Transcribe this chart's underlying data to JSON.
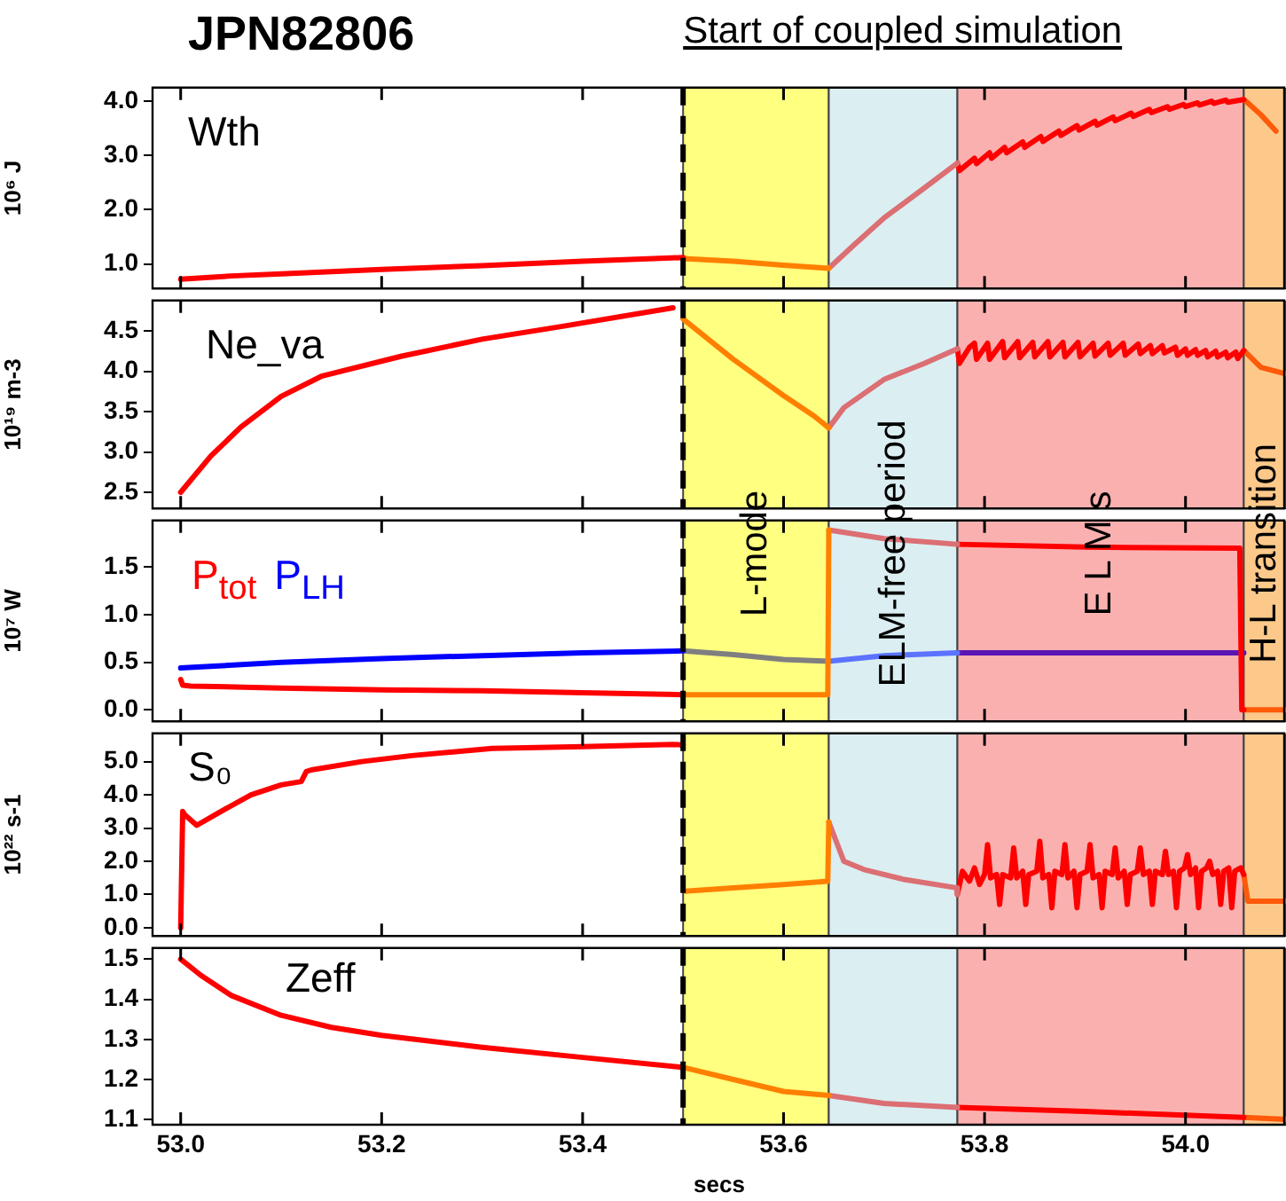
{
  "chart_data": [
    {
      "type": "line",
      "title": "JPN82806",
      "ylabel": "10⁶ J",
      "annotations": [
        "Wth"
      ],
      "tick_labels": "y",
      "marker": "none",
      "xlim": [
        52.972,
        54.1
      ],
      "xticks": [
        {
          "value": 53,
          "label": null
        },
        {
          "value": 53.2,
          "label": null
        },
        {
          "value": 53.4,
          "label": null
        },
        {
          "value": 53.6,
          "label": null
        },
        {
          "value": 53.8,
          "label": null
        },
        {
          "value": 54,
          "label": null
        }
      ],
      "ylim": [
        0.55,
        4.25
      ],
      "yticks": [
        {
          "value": 1,
          "label": "1.0"
        },
        {
          "value": 2,
          "label": "2.0"
        },
        {
          "value": 3,
          "label": "3.0"
        },
        {
          "value": 4,
          "label": "4.0"
        }
      ],
      "series": [
        {
          "color": "#ff0000",
          "x": [
            53.0,
            53.05,
            53.1,
            53.2,
            53.3,
            53.4,
            53.5
          ],
          "values": [
            0.72,
            0.78,
            0.82,
            0.9,
            0.97,
            1.05,
            1.12
          ]
        },
        {
          "color": "#ff8000",
          "x": [
            53.5,
            53.55,
            53.6,
            53.645
          ],
          "values": [
            1.1,
            1.05,
            0.98,
            0.92
          ]
        },
        {
          "color": "#db6f73",
          "x": [
            53.645,
            53.67,
            53.7,
            53.74,
            53.773
          ],
          "values": [
            0.92,
            1.35,
            1.85,
            2.4,
            2.86
          ]
        },
        {
          "color": "#ff0000",
          "x": [
            53.773,
            53.775,
            53.79,
            53.792,
            53.805,
            53.807,
            53.82,
            53.822,
            53.838,
            53.84,
            53.856,
            53.858,
            53.874,
            53.876,
            53.892,
            53.894,
            53.91,
            53.912,
            53.928,
            53.93,
            53.946,
            53.948,
            53.964,
            53.966,
            53.982,
            53.984,
            53.998,
            54.0,
            54.012,
            54.014,
            54.026,
            54.028,
            54.04,
            54.042,
            54.058
          ],
          "values": [
            2.86,
            2.72,
            2.95,
            2.85,
            3.05,
            2.95,
            3.15,
            3.05,
            3.25,
            3.15,
            3.35,
            3.26,
            3.45,
            3.37,
            3.55,
            3.47,
            3.63,
            3.56,
            3.71,
            3.64,
            3.78,
            3.72,
            3.85,
            3.79,
            3.9,
            3.85,
            3.94,
            3.9,
            3.97,
            3.93,
            4.0,
            3.96,
            4.02,
            3.98,
            4.03
          ]
        },
        {
          "color": "#fd5a0a",
          "x": [
            54.058,
            54.06,
            54.075,
            54.09
          ],
          "values": [
            4.03,
            4.0,
            3.75,
            3.45
          ]
        }
      ],
      "bands": [
        {
          "axis": "x",
          "from": 53.5,
          "to": 53.645,
          "color": "#ffff80"
        },
        {
          "axis": "x",
          "from": 53.645,
          "to": 53.773,
          "color": "#dbeef2"
        },
        {
          "axis": "x",
          "from": 53.773,
          "to": 54.058,
          "color": "#fbb0b0"
        },
        {
          "axis": "x",
          "from": 54.058,
          "to": 54.1,
          "color": "#fdc98a"
        }
      ],
      "ref_lines": [
        {
          "axis": "x",
          "value": 53.5,
          "label": "Start of coupled simulation",
          "color": "#000000",
          "line_style": "dashed"
        }
      ]
    },
    {
      "type": "line",
      "ylabel": "10¹⁹ m-3",
      "annotations": [
        "Ne_va"
      ],
      "tick_labels": "y",
      "marker": "none",
      "xlim": [
        52.972,
        54.1
      ],
      "xticks": [
        {
          "value": 53,
          "label": null
        },
        {
          "value": 53.2,
          "label": null
        },
        {
          "value": 53.4,
          "label": null
        },
        {
          "value": 53.6,
          "label": null
        },
        {
          "value": 53.8,
          "label": null
        },
        {
          "value": 54,
          "label": null
        }
      ],
      "ylim": [
        2.3,
        4.88
      ],
      "yticks": [
        2.5,
        {
          "value": 3,
          "label": "3.0"
        },
        3.5,
        {
          "value": 4,
          "label": "4.0"
        },
        4.5
      ],
      "series": [
        {
          "color": "#ff0000",
          "x": [
            53.0,
            53.03,
            53.06,
            53.1,
            53.14,
            53.22,
            53.3,
            53.38,
            53.49
          ],
          "values": [
            2.5,
            2.95,
            3.31,
            3.69,
            3.94,
            4.19,
            4.4,
            4.56,
            4.79
          ]
        },
        {
          "color": "#ff8000",
          "x": [
            53.5,
            53.55,
            53.6,
            53.63,
            53.645
          ],
          "values": [
            4.65,
            4.15,
            3.7,
            3.45,
            3.3
          ]
        },
        {
          "color": "#db6f73",
          "x": [
            53.645,
            53.66,
            53.7,
            53.74,
            53.773
          ],
          "values": [
            3.3,
            3.55,
            3.9,
            4.1,
            4.28
          ]
        },
        {
          "color": "#ff0000",
          "x": [
            53.773,
            53.775,
            53.785,
            53.79,
            53.792,
            53.803,
            53.805,
            53.818,
            53.82,
            53.833,
            53.835,
            53.848,
            53.85,
            53.863,
            53.865,
            53.878,
            53.88,
            53.893,
            53.895,
            53.908,
            53.91,
            53.923,
            53.925,
            53.938,
            53.94,
            53.953,
            53.955,
            53.965,
            53.967,
            53.977,
            53.979,
            53.99,
            53.992,
            54.0,
            54.002,
            54.01,
            54.012,
            54.02,
            54.022,
            54.03,
            54.032,
            54.04,
            54.042,
            54.05,
            54.052,
            54.058
          ],
          "values": [
            4.28,
            4.1,
            4.3,
            4.35,
            4.15,
            4.35,
            4.15,
            4.37,
            4.17,
            4.37,
            4.17,
            4.36,
            4.18,
            4.37,
            4.18,
            4.36,
            4.18,
            4.36,
            4.18,
            4.35,
            4.19,
            4.35,
            4.2,
            4.35,
            4.2,
            4.34,
            4.22,
            4.32,
            4.22,
            4.32,
            4.23,
            4.3,
            4.2,
            4.28,
            4.2,
            4.27,
            4.2,
            4.26,
            4.18,
            4.25,
            4.18,
            4.24,
            4.17,
            4.24,
            4.16,
            4.26
          ]
        },
        {
          "color": "#fd5a0a",
          "x": [
            54.058,
            54.075,
            54.1
          ],
          "values": [
            4.26,
            4.05,
            3.97
          ]
        }
      ],
      "bands": [
        {
          "axis": "x",
          "from": 53.5,
          "to": 53.645,
          "color": "#ffff80"
        },
        {
          "axis": "x",
          "from": 53.645,
          "to": 53.773,
          "color": "#dbeef2"
        },
        {
          "axis": "x",
          "from": 53.773,
          "to": 54.058,
          "color": "#fbb0b0"
        },
        {
          "axis": "x",
          "from": 54.058,
          "to": 54.1,
          "color": "#fdc98a"
        }
      ],
      "ref_lines": [
        {
          "axis": "x",
          "value": 53.5,
          "color": "#000000",
          "line_style": "dashed"
        }
      ]
    },
    {
      "type": "line",
      "ylabel": "10⁷ W",
      "legend": "top left",
      "tick_labels": "y",
      "marker": "none",
      "xlim": [
        52.972,
        54.1
      ],
      "xticks": [
        {
          "value": 53,
          "label": null
        },
        {
          "value": 53.2,
          "label": null
        },
        {
          "value": 53.4,
          "label": null
        },
        {
          "value": 53.6,
          "label": null
        },
        {
          "value": 53.8,
          "label": null
        },
        {
          "value": 54,
          "label": null
        }
      ],
      "ylim": [
        -0.12,
        1.99
      ],
      "yticks": [
        {
          "value": 0,
          "label": "0.0"
        },
        0.5,
        {
          "value": 1,
          "label": "1.0"
        },
        1.5
      ],
      "series": [
        {
          "name": "P$_{tot}$",
          "color": "#ff0000",
          "x": [
            53.0,
            53.002,
            53.01,
            53.1,
            53.2,
            53.3,
            53.4,
            53.5
          ],
          "values": [
            0.32,
            0.26,
            0.25,
            0.23,
            0.21,
            0.2,
            0.18,
            0.16
          ]
        },
        {
          "name": "P$_{LH}$",
          "color": "#0000ff",
          "x": [
            53.0,
            53.1,
            53.2,
            53.3,
            53.4,
            53.5
          ],
          "values": [
            0.44,
            0.5,
            0.54,
            0.57,
            0.6,
            0.62
          ]
        },
        {
          "color": "#ff8000",
          "x": [
            53.5,
            53.55,
            53.6,
            53.644,
            53.645
          ],
          "values": [
            0.16,
            0.16,
            0.16,
            0.16,
            1.89
          ]
        },
        {
          "color": "#db6f73",
          "x": [
            53.645,
            53.7,
            53.773
          ],
          "values": [
            1.89,
            1.8,
            1.74
          ]
        },
        {
          "color": "#ff0000",
          "x": [
            53.773,
            53.9,
            54.054,
            54.056,
            54.058
          ],
          "values": [
            1.74,
            1.71,
            1.7,
            0.0,
            0.0
          ]
        },
        {
          "color": "#fd5a0a",
          "x": [
            54.058,
            54.1
          ],
          "values": [
            0.0,
            0.0
          ]
        },
        {
          "color": "#7f7f80",
          "x": [
            53.5,
            53.55,
            53.6,
            53.645
          ],
          "values": [
            0.62,
            0.58,
            0.53,
            0.51
          ]
        },
        {
          "color": "#5b73ff",
          "x": [
            53.645,
            53.7,
            53.773
          ],
          "values": [
            0.51,
            0.57,
            0.6
          ]
        },
        {
          "color": "#5a14b4",
          "x": [
            53.773,
            53.9,
            54.0,
            54.058
          ],
          "values": [
            0.6,
            0.6,
            0.6,
            0.6
          ]
        }
      ],
      "bands": [
        {
          "axis": "x",
          "from": 53.5,
          "to": 53.645,
          "color": "#ffff80",
          "label": "L-mode"
        },
        {
          "axis": "x",
          "from": 53.645,
          "to": 53.773,
          "color": "#dbeef2",
          "label": "ELM-free period"
        },
        {
          "axis": "x",
          "from": 53.773,
          "to": 54.058,
          "color": "#fbb0b0",
          "label": "E L M s"
        },
        {
          "axis": "x",
          "from": 54.058,
          "to": 54.1,
          "color": "#fdc98a",
          "label": "H-L transition"
        }
      ],
      "ref_lines": [
        {
          "axis": "x",
          "value": 53.5,
          "color": "#000000",
          "line_style": "dashed"
        }
      ]
    },
    {
      "type": "line",
      "ylabel": "10²² s-1",
      "annotations": [
        "S₀"
      ],
      "tick_labels": "y",
      "marker": "none",
      "xlim": [
        52.972,
        54.1
      ],
      "xticks": [
        {
          "value": 53,
          "label": null
        },
        {
          "value": 53.2,
          "label": null
        },
        {
          "value": 53.4,
          "label": null
        },
        {
          "value": 53.6,
          "label": null
        },
        {
          "value": 53.8,
          "label": null
        },
        {
          "value": 54,
          "label": null
        }
      ],
      "ylim": [
        -0.25,
        5.85
      ],
      "yticks": [
        {
          "value": 0,
          "label": "0.0"
        },
        {
          "value": 1,
          "label": "1.0"
        },
        {
          "value": 2,
          "label": "2.0"
        },
        {
          "value": 3,
          "label": "3.0"
        },
        {
          "value": 4,
          "label": "4.0"
        },
        {
          "value": 5,
          "label": "5.0"
        }
      ],
      "series": [
        {
          "color": "#ff0000",
          "x": [
            53.0,
            53.002,
            53.004,
            53.016,
            53.04,
            53.07,
            53.1,
            53.12,
            53.125,
            53.13,
            53.18,
            53.23,
            53.31,
            53.4,
            53.49,
            53.5
          ],
          "values": [
            0.0,
            3.5,
            3.4,
            3.08,
            3.5,
            4.0,
            4.3,
            4.4,
            4.7,
            4.75,
            5.0,
            5.18,
            5.4,
            5.45,
            5.52,
            5.5
          ]
        },
        {
          "color": "#ff8000",
          "x": [
            53.502,
            53.55,
            53.6,
            53.644,
            53.645
          ],
          "values": [
            1.1,
            1.2,
            1.3,
            1.4,
            3.18
          ]
        },
        {
          "color": "#db6f73",
          "x": [
            53.645,
            53.66,
            53.68,
            53.72,
            53.772,
            53.773
          ],
          "values": [
            3.18,
            2.0,
            1.75,
            1.45,
            1.2,
            1.0
          ]
        },
        {
          "color": "#ff0000",
          "x": [
            53.773,
            53.778,
            53.785,
            53.79,
            53.795,
            53.8,
            53.803,
            53.806,
            53.812,
            53.815,
            53.818,
            53.826,
            53.829,
            53.832,
            53.838,
            53.841,
            53.844,
            53.852,
            53.855,
            53.858,
            53.864,
            53.867,
            53.87,
            53.877,
            53.88,
            53.883,
            53.889,
            53.892,
            53.895,
            53.902,
            53.905,
            53.908,
            53.914,
            53.917,
            53.92,
            53.927,
            53.93,
            53.933,
            53.939,
            53.942,
            53.945,
            53.952,
            53.955,
            53.958,
            53.964,
            53.967,
            53.97,
            53.977,
            53.98,
            53.983,
            53.988,
            53.991,
            53.994,
            53.999,
            54.002,
            54.005,
            54.01,
            54.013,
            54.016,
            54.021,
            54.024,
            54.027,
            54.032,
            54.035,
            54.038,
            54.043,
            54.046,
            54.049,
            54.055,
            54.058
          ],
          "values": [
            1.0,
            1.7,
            1.4,
            1.8,
            1.3,
            1.6,
            2.5,
            1.5,
            1.6,
            0.7,
            1.6,
            1.5,
            2.4,
            1.5,
            1.7,
            0.7,
            1.6,
            1.7,
            2.6,
            1.5,
            1.6,
            0.6,
            1.7,
            1.6,
            2.5,
            1.5,
            1.7,
            0.6,
            1.6,
            1.7,
            2.5,
            1.5,
            1.6,
            0.6,
            1.7,
            1.6,
            2.4,
            1.5,
            1.7,
            0.7,
            1.6,
            1.7,
            2.4,
            1.6,
            1.7,
            0.7,
            1.7,
            1.6,
            2.3,
            1.6,
            1.7,
            0.6,
            1.7,
            1.8,
            2.2,
            1.6,
            1.8,
            0.6,
            1.7,
            1.8,
            2.0,
            1.6,
            1.7,
            0.7,
            1.7,
            1.8,
            0.6,
            1.7,
            1.8,
            1.6
          ]
        },
        {
          "color": "#fd5a0a",
          "x": [
            54.058,
            54.062,
            54.1
          ],
          "values": [
            1.6,
            0.8,
            0.8
          ]
        }
      ],
      "bands": [
        {
          "axis": "x",
          "from": 53.5,
          "to": 53.645,
          "color": "#ffff80"
        },
        {
          "axis": "x",
          "from": 53.645,
          "to": 53.773,
          "color": "#dbeef2"
        },
        {
          "axis": "x",
          "from": 53.773,
          "to": 54.058,
          "color": "#fbb0b0"
        },
        {
          "axis": "x",
          "from": 54.058,
          "to": 54.1,
          "color": "#fdc98a"
        }
      ],
      "ref_lines": [
        {
          "axis": "x",
          "value": 53.5,
          "color": "#000000",
          "line_style": "dashed"
        }
      ]
    },
    {
      "type": "line",
      "xlabel": "secs",
      "annotations": [
        "Zeff"
      ],
      "marker": "none",
      "xlim": [
        52.972,
        54.1
      ],
      "xticks": [
        {
          "value": 53,
          "label": "53.0"
        },
        53.2,
        53.4,
        53.6,
        53.8,
        {
          "value": 54,
          "label": "54.0"
        }
      ],
      "ylim": [
        1.087,
        1.528
      ],
      "yticks": [
        1.1,
        1.2,
        1.3,
        1.4,
        1.5
      ],
      "series": [
        {
          "color": "#ff0000",
          "x": [
            53.0,
            53.02,
            53.05,
            53.1,
            53.15,
            53.2,
            53.3,
            53.4,
            53.5
          ],
          "values": [
            1.5,
            1.46,
            1.41,
            1.36,
            1.33,
            1.31,
            1.28,
            1.255,
            1.23
          ]
        },
        {
          "color": "#ff8000",
          "x": [
            53.5,
            53.55,
            53.6,
            53.645
          ],
          "values": [
            1.23,
            1.2,
            1.17,
            1.16
          ]
        },
        {
          "color": "#db6f73",
          "x": [
            53.645,
            53.7,
            53.773
          ],
          "values": [
            1.16,
            1.14,
            1.13
          ]
        },
        {
          "color": "#ff0000",
          "x": [
            53.773,
            53.9,
            54.058
          ],
          "values": [
            1.13,
            1.12,
            1.105
          ]
        },
        {
          "color": "#fd5a0a",
          "x": [
            54.058,
            54.1
          ],
          "values": [
            1.105,
            1.1
          ]
        }
      ],
      "bands": [
        {
          "axis": "x",
          "from": 53.5,
          "to": 53.645,
          "color": "#ffff80"
        },
        {
          "axis": "x",
          "from": 53.645,
          "to": 53.773,
          "color": "#dbeef2"
        },
        {
          "axis": "x",
          "from": 53.773,
          "to": 54.058,
          "color": "#fbb0b0"
        },
        {
          "axis": "x",
          "from": 54.058,
          "to": 54.1,
          "color": "#fdc98a"
        }
      ],
      "ref_lines": [
        {
          "axis": "x",
          "value": 53.5,
          "color": "#000000",
          "line_style": "dashed"
        }
      ]
    }
  ]
}
